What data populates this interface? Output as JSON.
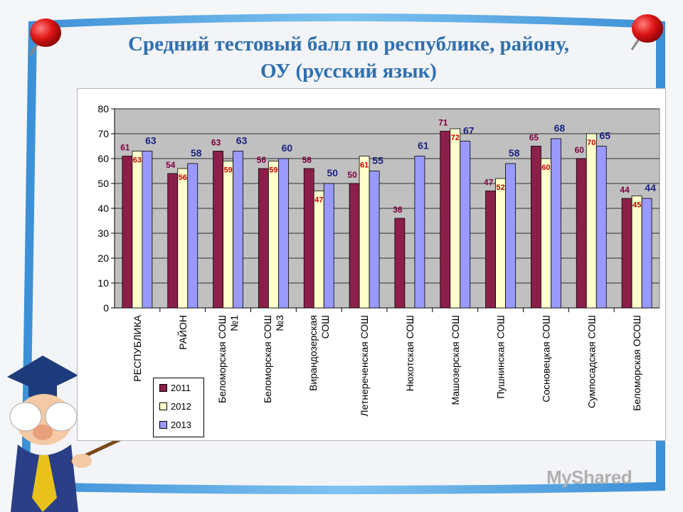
{
  "title_line1": "Средний тестовый балл по республике, району,",
  "title_line2": "ОУ (русский язык)",
  "watermark": "MyShared",
  "colors": {
    "s2011": "#8b1f4a",
    "s2012": "#ffffcc",
    "s2013": "#9999ff",
    "plot_bg": "#c0c0c0",
    "label_2011": "#800040",
    "label_2012": "#cc0000",
    "label_2013": "#1a237e"
  },
  "chart_data": {
    "type": "bar",
    "title": "Средний тестовый балл по республике, району, ОУ (русский язык)",
    "categories": [
      [
        "РЕСПУБЛИКА"
      ],
      [
        "РАЙОН"
      ],
      [
        "Беломорская СОШ",
        "№1"
      ],
      [
        "Беломорская СОШ",
        "№3"
      ],
      [
        "Вирандозерская",
        "СОШ"
      ],
      [
        "Летнереченская СОШ"
      ],
      [
        "Нюхотская СОШ"
      ],
      [
        "Машозерская СОШ"
      ],
      [
        "Пушнинская СОШ"
      ],
      [
        "Сосновецкая СОШ"
      ],
      [
        "Сумпосадская СОШ"
      ],
      [
        "Беломорская ОСОШ"
      ]
    ],
    "series": [
      {
        "name": "2011",
        "values": [
          61,
          54,
          63,
          56,
          56,
          50,
          36,
          71,
          47,
          65,
          60,
          44
        ]
      },
      {
        "name": "2012",
        "values": [
          63,
          56,
          59,
          59,
          47,
          61,
          null,
          72,
          52,
          60,
          70,
          45
        ]
      },
      {
        "name": "2013",
        "values": [
          63,
          58,
          63,
          60,
          50,
          55,
          61,
          67,
          58,
          68,
          65,
          44
        ]
      }
    ],
    "ylim": [
      0,
      80
    ],
    "yticks": [
      "0",
      "10",
      "20",
      "30",
      "40",
      "50",
      "60",
      "70",
      "80"
    ],
    "grid": true,
    "legend_position": "bottom-left"
  }
}
